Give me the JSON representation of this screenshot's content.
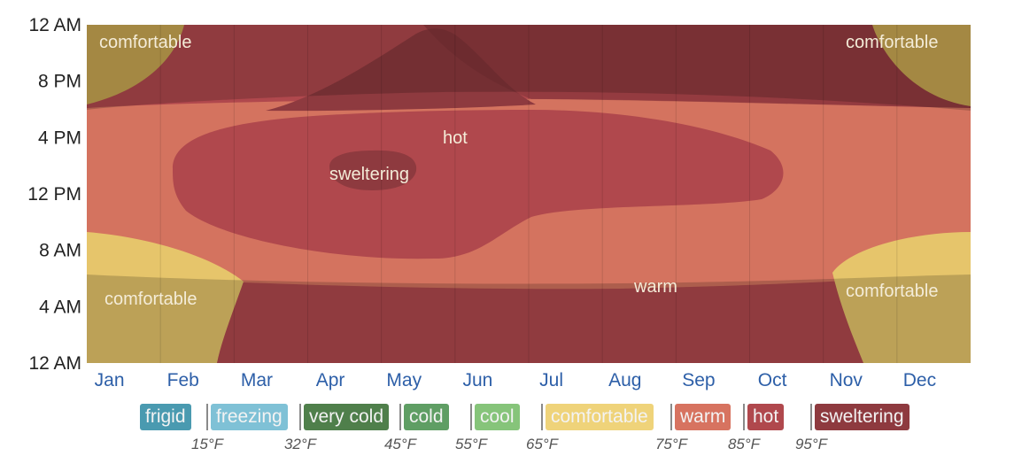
{
  "chart_data": {
    "type": "heatmap",
    "title": "",
    "y_axis": {
      "ticks": [
        "12 AM",
        "8 PM",
        "4 PM",
        "12 PM",
        "8 AM",
        "4 AM",
        "12 AM"
      ]
    },
    "x_axis": {
      "ticks": [
        "Jan",
        "Feb",
        "Mar",
        "Apr",
        "May",
        "Jun",
        "Jul",
        "Aug",
        "Sep",
        "Oct",
        "Nov",
        "Dec"
      ]
    },
    "region_labels": [
      {
        "text": "comfortable"
      },
      {
        "text": "comfortable"
      },
      {
        "text": "hot"
      },
      {
        "text": "sweltering"
      },
      {
        "text": "warm"
      },
      {
        "text": "comfortable"
      },
      {
        "text": "comfortable"
      }
    ],
    "legend": [
      {
        "label": "frigid",
        "color": "#4a9ab0"
      },
      {
        "label": "freezing",
        "color": "#7fc1d6"
      },
      {
        "label": "very cold",
        "color": "#4f7f4b"
      },
      {
        "label": "cold",
        "color": "#5f9e64"
      },
      {
        "label": "cool",
        "color": "#86c47a"
      },
      {
        "label": "comfortable",
        "color": "#efd37a"
      },
      {
        "label": "warm",
        "color": "#d77360"
      },
      {
        "label": "hot",
        "color": "#b0484d"
      },
      {
        "label": "sweltering",
        "color": "#8e3a3f"
      }
    ],
    "thresholds": [
      "15°F",
      "32°F",
      "45°F",
      "55°F",
      "65°F",
      "75°F",
      "85°F",
      "95°F"
    ],
    "grid": true,
    "night_shading": true
  }
}
